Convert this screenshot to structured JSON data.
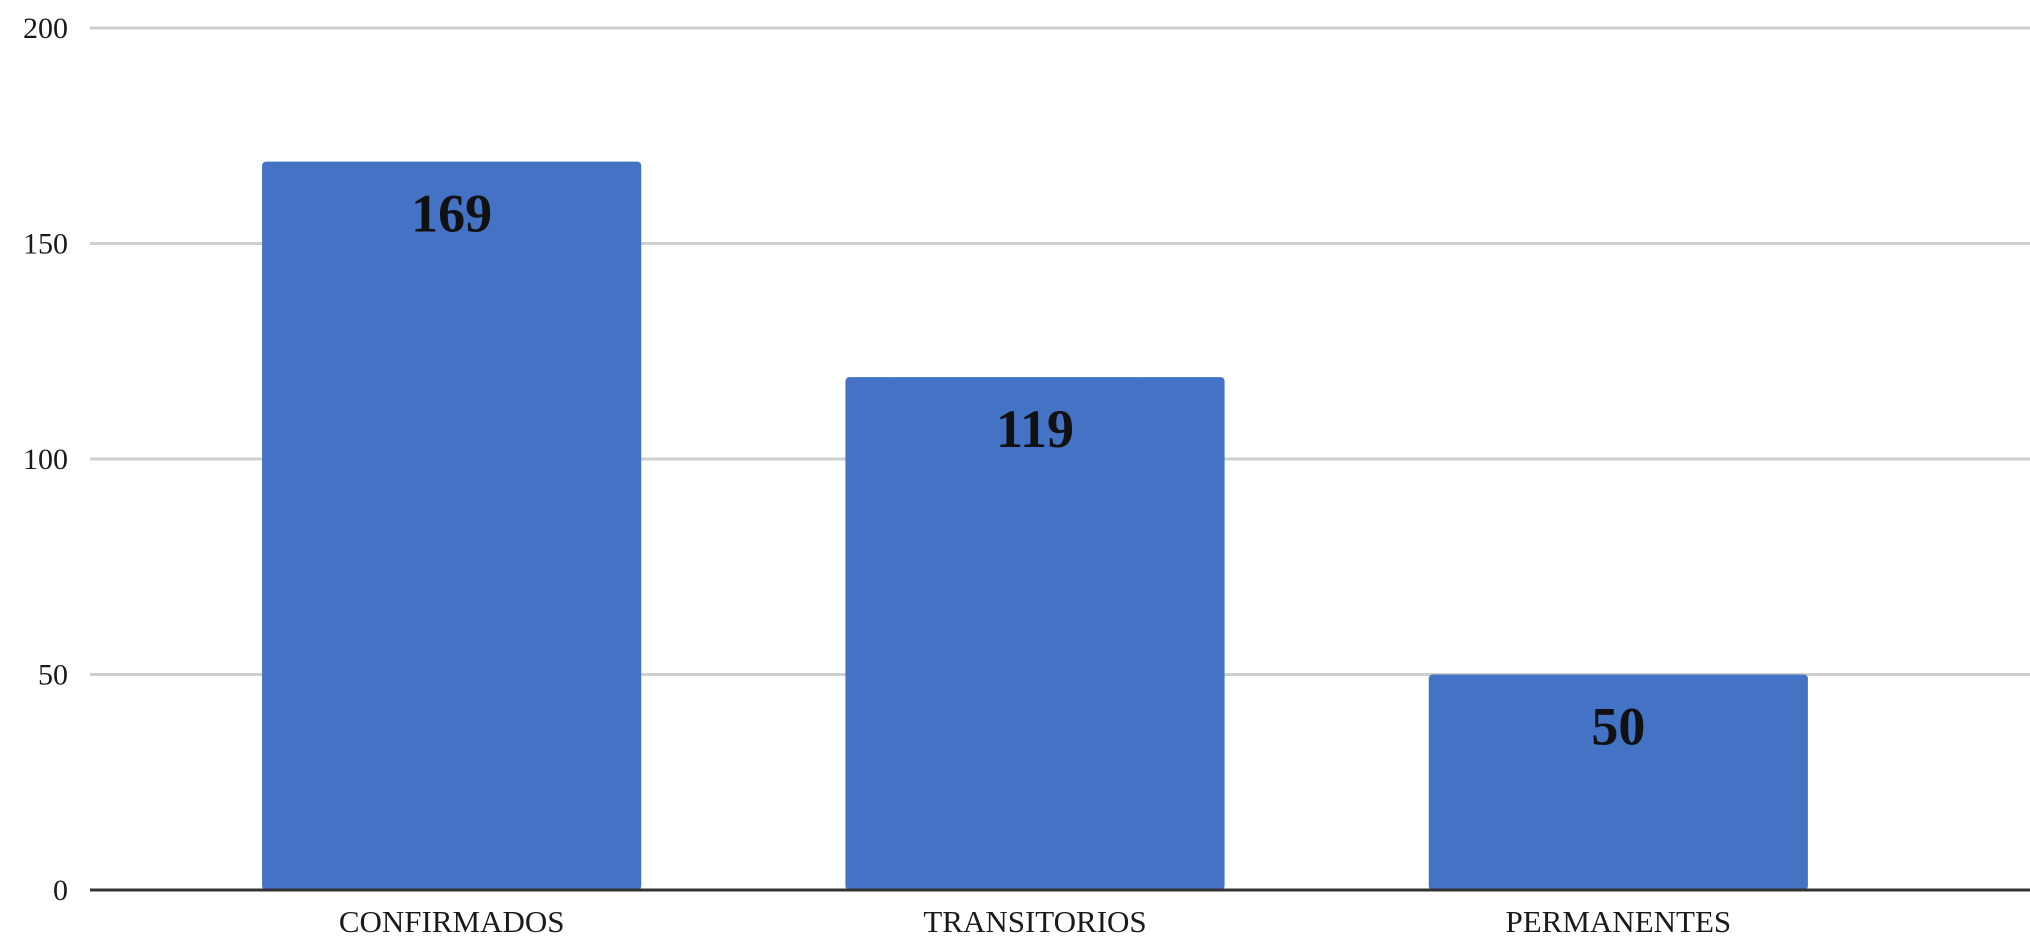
{
  "chart_data": {
    "type": "bar",
    "title": "",
    "xlabel": "",
    "ylabel": "",
    "categories": [
      "CONFIRMADOS",
      "TRANSITORIOS",
      "PERMANENTES"
    ],
    "values": [
      169,
      119,
      50
    ],
    "data_labels": [
      "169",
      "119",
      "50"
    ],
    "ylim": [
      0,
      200
    ],
    "yticks": [
      0,
      50,
      100,
      150,
      200
    ],
    "ytick_labels": [
      "0",
      "50",
      "100",
      "150",
      "200"
    ],
    "grid": true,
    "legend": "none",
    "colors": {
      "bar": "#4472C4",
      "grid": "#cfcfcf",
      "axis": "#333333"
    }
  }
}
